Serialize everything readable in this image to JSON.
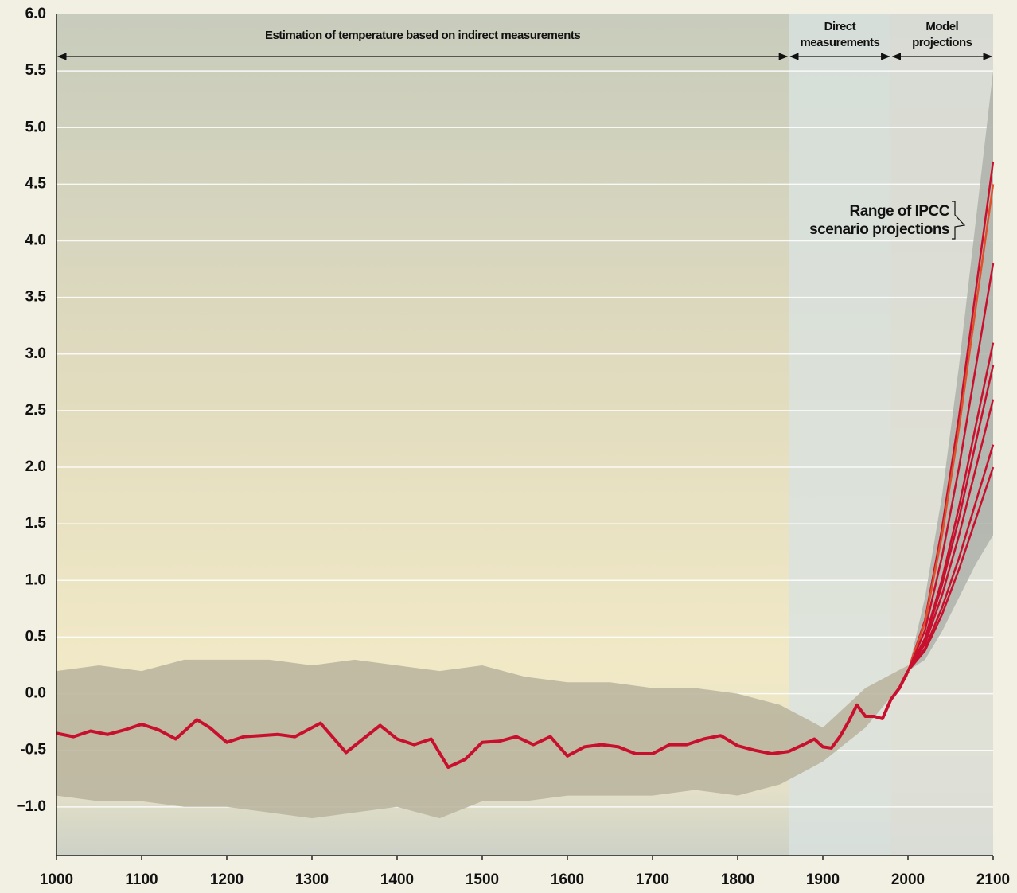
{
  "chart_data": {
    "type": "line",
    "xlim": [
      1000,
      2100
    ],
    "xticks": [
      1000,
      1100,
      1200,
      1300,
      1400,
      1500,
      1600,
      1700,
      1800,
      1900,
      2000,
      2100
    ],
    "ylim": [
      -1.43,
      6.0
    ],
    "yticks": [
      {
        "value": -1.0,
        "label": "−1.0"
      },
      {
        "value": -0.5,
        "label": "-0.5"
      },
      {
        "value": 0,
        "label": "0.0"
      },
      {
        "value": 0.5,
        "label": "0.5"
      },
      {
        "value": 1.0,
        "label": "1.0"
      },
      {
        "value": 1.5,
        "label": "1.5"
      },
      {
        "value": 2.0,
        "label": "2.0"
      },
      {
        "value": 2.5,
        "label": "2.5"
      },
      {
        "value": 3.0,
        "label": "3.0"
      },
      {
        "value": 3.5,
        "label": "3.5"
      },
      {
        "value": 4.0,
        "label": "4.0"
      },
      {
        "value": 4.5,
        "label": "4.5"
      },
      {
        "value": 5.0,
        "label": "5.0"
      },
      {
        "value": 5.5,
        "label": "5.5"
      },
      {
        "value": 6.0,
        "label": "6.0"
      }
    ],
    "grid": true,
    "spans": [
      {
        "lines": [
          "Estimation of temperature based on indirect measurements"
        ],
        "from": 1000,
        "to": 1860
      },
      {
        "lines": [
          "Direct",
          "measurements"
        ],
        "from": 1860,
        "to": 1980
      },
      {
        "lines": [
          "Model",
          "projections"
        ],
        "from": 1980,
        "to": 2100
      }
    ],
    "annotation": {
      "lines": [
        "Range of IPCC",
        "scenario projections"
      ]
    },
    "band": {
      "color": "#b9b39c",
      "x": [
        1000,
        1050,
        1100,
        1150,
        1200,
        1250,
        1300,
        1350,
        1400,
        1450,
        1500,
        1550,
        1600,
        1650,
        1700,
        1750,
        1800,
        1850,
        1900,
        1950,
        2000
      ],
      "upper": [
        0.2,
        0.25,
        0.2,
        0.3,
        0.3,
        0.3,
        0.25,
        0.3,
        0.25,
        0.2,
        0.25,
        0.15,
        0.1,
        0.1,
        0.05,
        0.05,
        0.0,
        -0.1,
        -0.3,
        0.05,
        0.25
      ],
      "lower": [
        -0.9,
        -0.95,
        -0.95,
        -1.0,
        -1.0,
        -1.05,
        -1.1,
        -1.05,
        -1.0,
        -1.1,
        -0.95,
        -0.95,
        -0.9,
        -0.9,
        -0.9,
        -0.85,
        -0.9,
        -0.8,
        -0.6,
        -0.3,
        0.15
      ]
    },
    "projection_band": {
      "color": "#aeb1aa",
      "x": [
        2000,
        2020,
        2040,
        2060,
        2080,
        2100
      ],
      "upper": [
        0.2,
        0.85,
        1.75,
        2.9,
        4.2,
        5.5
      ],
      "lower": [
        0.2,
        0.3,
        0.55,
        0.85,
        1.15,
        1.4
      ]
    },
    "history": {
      "color": "#c8102e",
      "x": [
        1000,
        1020,
        1040,
        1060,
        1080,
        1100,
        1120,
        1140,
        1165,
        1180,
        1200,
        1220,
        1240,
        1260,
        1280,
        1310,
        1340,
        1360,
        1380,
        1400,
        1420,
        1440,
        1460,
        1480,
        1500,
        1520,
        1540,
        1560,
        1580,
        1600,
        1620,
        1640,
        1660,
        1680,
        1700,
        1720,
        1740,
        1760,
        1780,
        1800,
        1820,
        1840,
        1860,
        1880,
        1890,
        1900,
        1910,
        1920,
        1930,
        1940,
        1950,
        1960,
        1970,
        1980,
        1990,
        2000
      ],
      "values": [
        -0.35,
        -0.38,
        -0.33,
        -0.36,
        -0.32,
        -0.27,
        -0.32,
        -0.4,
        -0.23,
        -0.3,
        -0.43,
        -0.38,
        -0.37,
        -0.36,
        -0.38,
        -0.26,
        -0.52,
        -0.4,
        -0.28,
        -0.4,
        -0.45,
        -0.4,
        -0.65,
        -0.58,
        -0.43,
        -0.42,
        -0.38,
        -0.45,
        -0.38,
        -0.55,
        -0.47,
        -0.45,
        -0.47,
        -0.53,
        -0.53,
        -0.45,
        -0.45,
        -0.4,
        -0.37,
        -0.46,
        -0.5,
        -0.53,
        -0.51,
        -0.44,
        -0.4,
        -0.47,
        -0.48,
        -0.38,
        -0.25,
        -0.1,
        -0.2,
        -0.2,
        -0.22,
        -0.05,
        0.05,
        0.2
      ]
    },
    "projections": {
      "x": [
        2000,
        2020,
        2040,
        2060,
        2080,
        2100
      ],
      "series": [
        {
          "color": "#c8102e",
          "values": [
            0.2,
            0.65,
            1.46,
            2.45,
            3.58,
            4.7
          ]
        },
        {
          "color": "#e0502a",
          "values": [
            0.2,
            0.63,
            1.4,
            2.35,
            3.43,
            4.5
          ]
        },
        {
          "color": "#c8102e",
          "values": [
            0.2,
            0.56,
            1.21,
            2.0,
            2.9,
            3.8
          ]
        },
        {
          "color": "#c8102e",
          "values": [
            0.2,
            0.49,
            1.01,
            1.65,
            2.38,
            3.1
          ]
        },
        {
          "color": "#c8102e",
          "values": [
            0.2,
            0.47,
            0.96,
            1.55,
            2.23,
            2.9
          ]
        },
        {
          "color": "#c8102e",
          "values": [
            0.2,
            0.44,
            0.87,
            1.4,
            2.0,
            2.6
          ]
        },
        {
          "color": "#c8102e",
          "values": [
            0.2,
            0.4,
            0.76,
            1.2,
            1.7,
            2.2
          ]
        },
        {
          "color": "#c8102e",
          "values": [
            0.2,
            0.38,
            0.7,
            1.1,
            1.55,
            2.0
          ]
        }
      ]
    }
  }
}
